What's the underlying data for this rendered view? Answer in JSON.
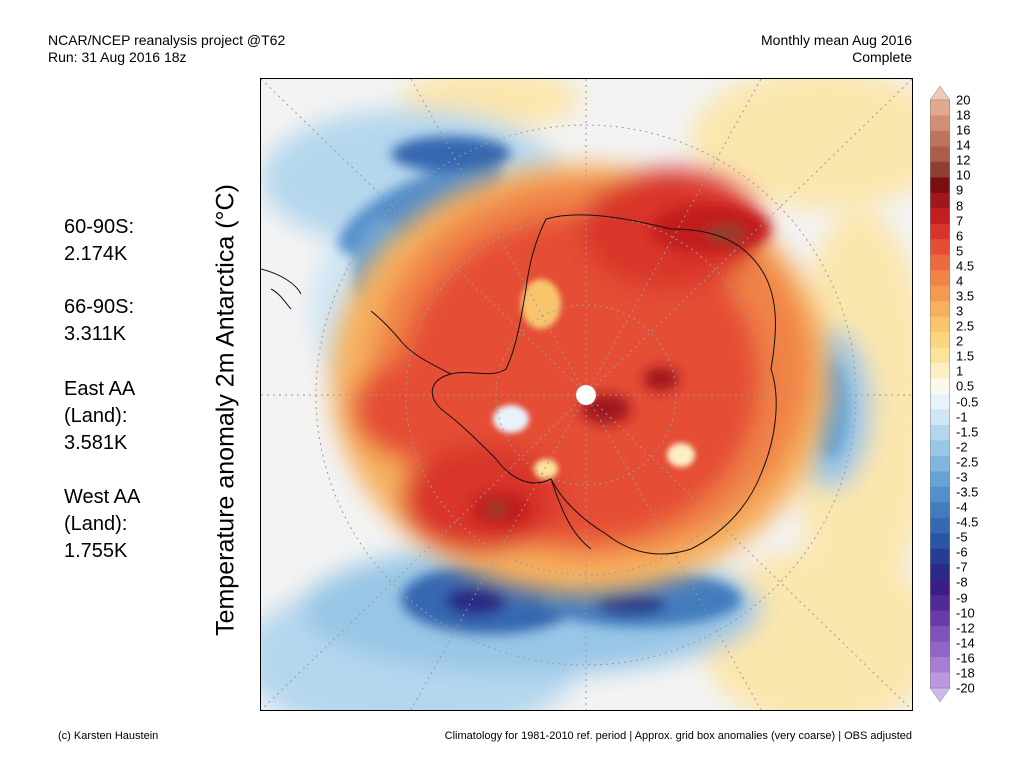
{
  "header": {
    "line1_left": "NCAR/NCEP reanalysis project @T62",
    "line2_left": "Run: 31 Aug 2016 18z",
    "line1_right": "Monthly mean Aug 2016",
    "line2_right": "Complete"
  },
  "vertical_label": "Temperature anomaly 2m Antarctica (°C)",
  "stats": [
    {
      "lines": [
        "60-90S:",
        "2.174K"
      ]
    },
    {
      "lines": [
        "66-90S:",
        "3.311K"
      ]
    },
    {
      "lines": [
        "East AA",
        "(Land):",
        "3.581K"
      ]
    },
    {
      "lines": [
        "West AA",
        "(Land):",
        "1.755K"
      ]
    }
  ],
  "colorbar": {
    "ticks": [
      "20",
      "18",
      "16",
      "14",
      "12",
      "10",
      "9",
      "8",
      "7",
      "6",
      "5",
      "4.5",
      "4",
      "3.5",
      "3",
      "2.5",
      "2",
      "1.5",
      "1",
      "0.5",
      "-0.5",
      "-1",
      "-1.5",
      "-2",
      "-2.5",
      "-3",
      "-3.5",
      "-4",
      "-4.5",
      "-5",
      "-6",
      "-7",
      "-8",
      "-9",
      "-10",
      "-12",
      "-14",
      "-16",
      "-18",
      "-20"
    ],
    "colors": [
      "#f2c7b5",
      "#e3a98e",
      "#d28d72",
      "#bf735d",
      "#a95d4a",
      "#8e3f2f",
      "#7a0e12",
      "#a0161a",
      "#c21e1f",
      "#d9342a",
      "#e54e35",
      "#ec6a3f",
      "#f08347",
      "#f39a52",
      "#f6b15e",
      "#f8c46c",
      "#fad57f",
      "#fbe39b",
      "#fcefc6",
      "#fbf8ee",
      "#e7f3fb",
      "#cfe6f5",
      "#b3d6ee",
      "#98c6e6",
      "#7fb5de",
      "#68a3d5",
      "#548fca",
      "#437cbe",
      "#3468b1",
      "#2a55a2",
      "#263e91",
      "#2a2a86",
      "#3a1e85",
      "#522a98",
      "#6a3aab",
      "#7e52bb",
      "#9266c8",
      "#a67ed4",
      "#bb98e0",
      "#d0b8ec"
    ]
  },
  "footer": {
    "left": "(c) Karsten Haustein",
    "right": "Climatology for 1981-2010 ref. period | Approx. grid box anomalies (very coarse) | OBS adjusted"
  }
}
